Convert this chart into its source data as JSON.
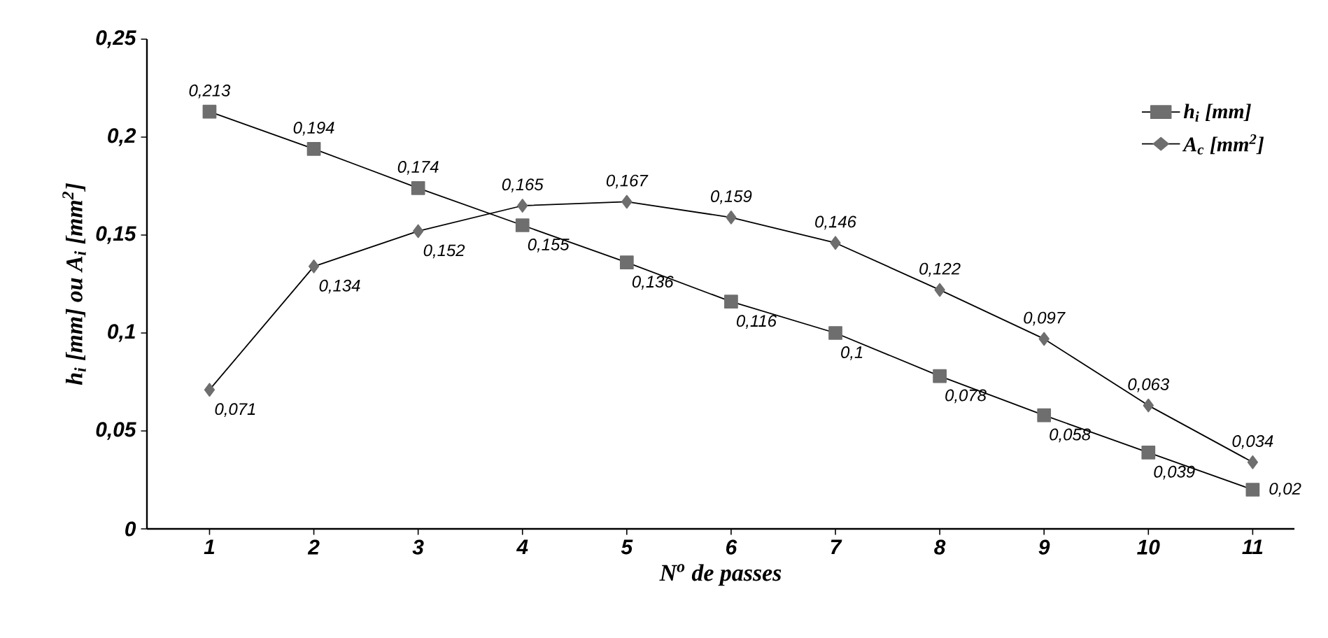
{
  "chart_data": {
    "type": "line",
    "xlabel": "N$^{o}$ de passes",
    "ylabel": "h$_{i}$ [mm] ou A$_{i}$ [mm$^{2}$]",
    "categories": [
      "1",
      "2",
      "3",
      "4",
      "5",
      "6",
      "7",
      "8",
      "9",
      "10",
      "11"
    ],
    "series": [
      {
        "name": "h$_{i}$ [mm]",
        "color": "#6e6e6e",
        "marker": "square",
        "values": [
          0.213,
          0.194,
          0.174,
          0.155,
          0.136,
          0.116,
          0.1,
          0.078,
          0.058,
          0.039,
          0.02
        ],
        "value_labels": [
          "0,213",
          "0,194",
          "0,174",
          "0,155",
          "0,136",
          "0,116",
          "0,1",
          "0,078",
          "0,058",
          "0,039",
          "0,02"
        ]
      },
      {
        "name": "A$_{c}$ [mm$^{2}$]",
        "color": "#6e6e6e",
        "marker": "diamond",
        "values": [
          0.071,
          0.134,
          0.152,
          0.165,
          0.167,
          0.159,
          0.146,
          0.122,
          0.097,
          0.063,
          0.034
        ],
        "value_labels": [
          "0,071",
          "0,134",
          "0,152",
          "0,165",
          "0,167",
          "0,159",
          "0,146",
          "0,122",
          "0,097",
          "0,063",
          "0,034"
        ]
      }
    ],
    "ylim": [
      0,
      0.25
    ],
    "yticks": [
      0,
      {
        "value": 0.05,
        "label": "0,05"
      },
      {
        "value": 0.1,
        "label": "0,1"
      },
      {
        "value": 0.15,
        "label": "0,15"
      },
      {
        "value": 0.2,
        "label": "0,2"
      },
      {
        "value": 0.25,
        "label": "0,25"
      }
    ],
    "grid": false,
    "legend": "top right"
  }
}
